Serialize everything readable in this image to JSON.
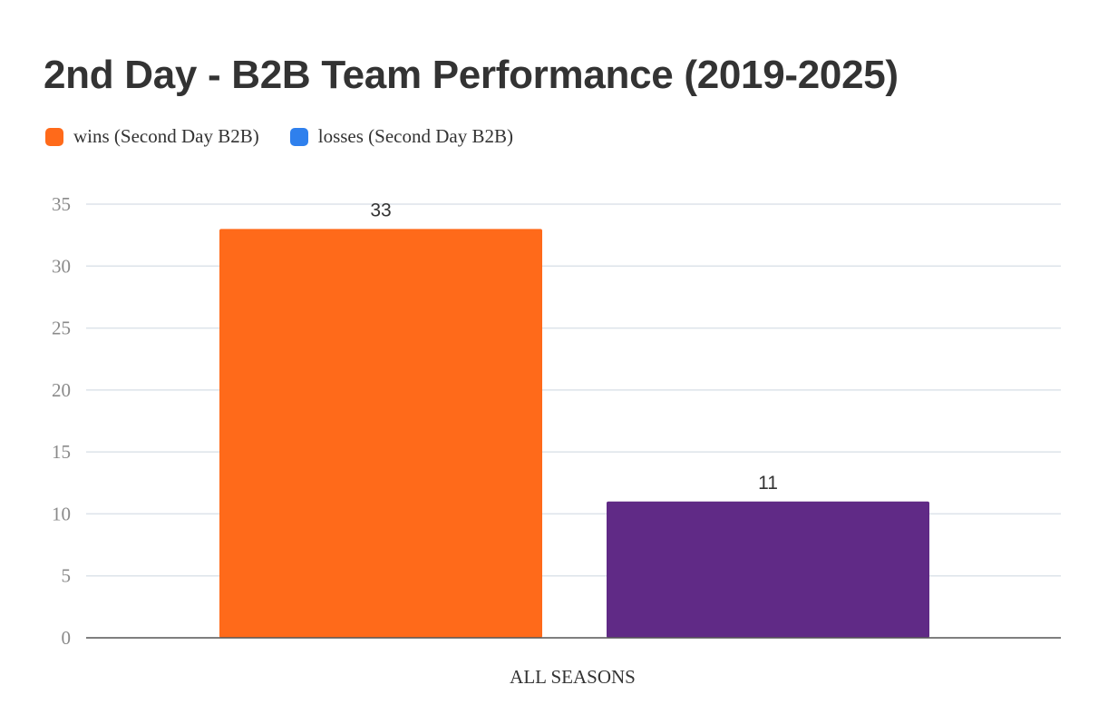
{
  "chart_data": {
    "type": "bar",
    "title": "2nd Day - B2B Team Performance (2019-2025)",
    "categories": [
      "ALL SEASONS"
    ],
    "series": [
      {
        "name": "wins (Second Day B2B)",
        "values": [
          33
        ],
        "legend_color": "#ff6a1a",
        "bar_color": "#ff6a1a"
      },
      {
        "name": "losses (Second Day B2B)",
        "values": [
          11
        ],
        "legend_color": "#2f80ed",
        "bar_color": "#602a86"
      }
    ],
    "ylim": [
      0,
      35
    ],
    "yticks": [
      0,
      5,
      10,
      15,
      20,
      25,
      30,
      35
    ],
    "grid": true,
    "legend_position": "top-left",
    "data_labels": true
  },
  "colors": {
    "grid": "#dde3ea",
    "axis": "#555555",
    "text": "#333333",
    "tick": "#8a8a8a"
  }
}
